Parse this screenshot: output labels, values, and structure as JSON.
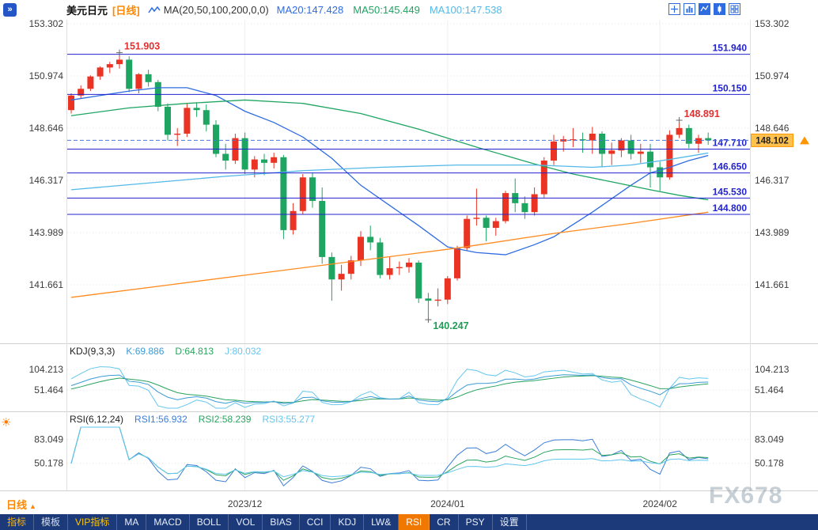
{
  "header": {
    "symbol": "美元日元",
    "timeframe": "[日线]",
    "ma_overlay": "MA(20,50,100,200,0,0)",
    "ma20": "MA20:147.428",
    "ma50": "MA50:145.449",
    "ma100": "MA100:147.538"
  },
  "panels": {
    "kdj": {
      "title": "KDJ(9,3,3)",
      "k": "K:69.886",
      "d": "D:64.813",
      "j": "J:80.032",
      "ticks": [
        {
          "value": 104.213,
          "label": "104.213"
        },
        {
          "value": 51.464,
          "label": "51.464"
        }
      ]
    },
    "rsi": {
      "title": "RSI(6,12,24)",
      "r1": "RSI1:56.932",
      "r2": "RSI2:58.239",
      "r3": "RSI3:55.277",
      "ticks": [
        {
          "value": 83.049,
          "label": "83.049"
        },
        {
          "value": 50.178,
          "label": "50.178"
        }
      ]
    }
  },
  "chart_data": {
    "type": "candlestick",
    "title": "美元日元 日线 (USD/JPY Daily)",
    "y_axis": {
      "ticks": [
        {
          "value": 153.302,
          "label": "153.302"
        },
        {
          "value": 150.974,
          "label": "150.974"
        },
        {
          "value": 148.646,
          "label": "148.646"
        },
        {
          "value": 146.317,
          "label": "146.317"
        },
        {
          "value": 143.989,
          "label": "143.989"
        },
        {
          "value": 141.661,
          "label": "141.661"
        }
      ]
    },
    "x_axis": {
      "ticks": [
        {
          "index": 18,
          "label": "2023/12"
        },
        {
          "index": 39,
          "label": "2024/01"
        },
        {
          "index": 61,
          "label": "2024/02"
        }
      ]
    },
    "candles": [
      [
        149.45,
        150.2,
        149.3,
        150.1
      ],
      [
        150.1,
        150.55,
        149.95,
        150.4
      ],
      [
        150.4,
        151.0,
        150.3,
        150.95
      ],
      [
        150.95,
        151.4,
        150.8,
        151.35
      ],
      [
        151.35,
        151.6,
        151.1,
        151.5
      ],
      [
        151.5,
        151.903,
        151.3,
        151.7
      ],
      [
        151.7,
        151.85,
        150.25,
        150.4
      ],
      [
        150.4,
        151.1,
        150.2,
        151.05
      ],
      [
        151.05,
        151.25,
        150.5,
        150.7
      ],
      [
        150.7,
        150.8,
        149.4,
        149.6
      ],
      [
        149.6,
        149.75,
        148.1,
        148.35
      ],
      [
        148.35,
        148.65,
        147.85,
        148.4
      ],
      [
        148.4,
        149.75,
        148.25,
        149.55
      ],
      [
        149.55,
        149.8,
        149.15,
        149.45
      ],
      [
        149.45,
        149.7,
        148.5,
        148.8
      ],
      [
        148.8,
        149.0,
        147.35,
        147.5
      ],
      [
        147.5,
        147.95,
        146.8,
        147.2
      ],
      [
        147.2,
        148.4,
        147.05,
        148.2
      ],
      [
        148.2,
        148.45,
        146.6,
        146.8
      ],
      [
        146.8,
        147.4,
        146.45,
        147.25
      ],
      [
        147.25,
        147.5,
        146.55,
        147.1
      ],
      [
        147.1,
        147.55,
        146.85,
        147.35
      ],
      [
        147.35,
        147.45,
        143.7,
        144.1
      ],
      [
        144.1,
        145.3,
        143.9,
        144.95
      ],
      [
        144.95,
        146.6,
        144.8,
        146.45
      ],
      [
        146.45,
        146.65,
        145.1,
        145.4
      ],
      [
        145.4,
        146.0,
        142.6,
        142.9
      ],
      [
        142.9,
        143.1,
        140.95,
        141.9
      ],
      [
        141.9,
        142.55,
        141.4,
        142.15
      ],
      [
        142.15,
        142.95,
        141.9,
        142.75
      ],
      [
        142.75,
        144.05,
        142.5,
        143.8
      ],
      [
        143.8,
        144.3,
        143.2,
        143.55
      ],
      [
        143.55,
        143.75,
        141.95,
        142.1
      ],
      [
        142.1,
        142.9,
        141.9,
        142.4
      ],
      [
        142.4,
        142.7,
        142.1,
        142.45
      ],
      [
        142.45,
        142.85,
        142.2,
        142.65
      ],
      [
        142.65,
        142.75,
        140.85,
        141.05
      ],
      [
        141.05,
        141.3,
        140.247,
        140.95
      ],
      [
        140.95,
        141.5,
        140.7,
        141.0
      ],
      [
        141.0,
        142.05,
        140.8,
        141.95
      ],
      [
        141.95,
        143.4,
        141.85,
        143.3
      ],
      [
        143.3,
        144.75,
        143.2,
        144.6
      ],
      [
        144.6,
        145.95,
        144.3,
        144.65
      ],
      [
        144.65,
        144.75,
        143.6,
        144.2
      ],
      [
        144.2,
        144.65,
        143.85,
        144.5
      ],
      [
        144.5,
        145.85,
        144.4,
        145.75
      ],
      [
        145.75,
        146.4,
        144.9,
        145.3
      ],
      [
        145.3,
        145.6,
        144.6,
        144.9
      ],
      [
        144.9,
        146.0,
        144.75,
        145.7
      ],
      [
        145.7,
        147.35,
        145.55,
        147.2
      ],
      [
        147.2,
        148.35,
        147.0,
        148.05
      ],
      [
        148.05,
        148.3,
        147.6,
        148.15
      ],
      [
        148.15,
        148.65,
        147.8,
        148.15
      ],
      [
        148.15,
        148.45,
        147.55,
        148.1
      ],
      [
        148.1,
        148.7,
        147.5,
        148.4
      ],
      [
        148.4,
        148.5,
        146.9,
        147.5
      ],
      [
        147.5,
        148.0,
        147.0,
        147.65
      ],
      [
        147.65,
        148.2,
        147.35,
        148.1
      ],
      [
        148.1,
        148.35,
        147.25,
        147.5
      ],
      [
        147.5,
        147.95,
        147.1,
        147.6
      ],
      [
        147.6,
        147.95,
        146.0,
        146.9
      ],
      [
        146.9,
        147.15,
        145.85,
        146.45
      ],
      [
        146.45,
        148.55,
        146.35,
        148.35
      ],
      [
        148.35,
        148.891,
        148.2,
        148.65
      ],
      [
        148.65,
        148.8,
        147.75,
        147.95
      ],
      [
        147.95,
        148.35,
        147.55,
        148.2
      ],
      [
        148.2,
        148.45,
        147.9,
        148.102
      ]
    ],
    "ma_lines": [
      {
        "name": "MA20",
        "color": "#2e6ce0",
        "points": [
          [
            0,
            149.9
          ],
          [
            3,
            150.1
          ],
          [
            6,
            150.3
          ],
          [
            9,
            150.45
          ],
          [
            12,
            150.45
          ],
          [
            15,
            150.1
          ],
          [
            18,
            149.4
          ],
          [
            21,
            148.9
          ],
          [
            24,
            148.25
          ],
          [
            27,
            147.3
          ],
          [
            30,
            146.1
          ],
          [
            33,
            145.2
          ],
          [
            36,
            144.3
          ],
          [
            39,
            143.35
          ],
          [
            42,
            143.1
          ],
          [
            45,
            143.0
          ],
          [
            48,
            143.45
          ],
          [
            50,
            143.8
          ],
          [
            52,
            144.35
          ],
          [
            54,
            144.9
          ],
          [
            56,
            145.5
          ],
          [
            58,
            146.1
          ],
          [
            60,
            146.65
          ],
          [
            62,
            146.9
          ],
          [
            64,
            147.2
          ],
          [
            66,
            147.428
          ]
        ]
      },
      {
        "name": "MA50",
        "color": "#1fa562",
        "points": [
          [
            0,
            149.2
          ],
          [
            6,
            149.55
          ],
          [
            12,
            149.75
          ],
          [
            18,
            149.9
          ],
          [
            24,
            149.75
          ],
          [
            30,
            149.3
          ],
          [
            36,
            148.6
          ],
          [
            42,
            147.8
          ],
          [
            48,
            147.05
          ],
          [
            52,
            146.6
          ],
          [
            56,
            146.25
          ],
          [
            60,
            145.9
          ],
          [
            63,
            145.65
          ],
          [
            66,
            145.449
          ]
        ]
      },
      {
        "name": "MA100",
        "color": "#54b9e8",
        "points": [
          [
            0,
            145.9
          ],
          [
            8,
            146.2
          ],
          [
            16,
            146.5
          ],
          [
            24,
            146.75
          ],
          [
            32,
            146.9
          ],
          [
            40,
            147.0
          ],
          [
            48,
            147.0
          ],
          [
            54,
            146.9
          ],
          [
            58,
            147.0
          ],
          [
            62,
            147.25
          ],
          [
            66,
            147.538
          ]
        ]
      },
      {
        "name": "MA200",
        "color": "#ff8a1e",
        "points": [
          [
            0,
            141.1
          ],
          [
            10,
            141.65
          ],
          [
            20,
            142.2
          ],
          [
            30,
            142.75
          ],
          [
            40,
            143.3
          ],
          [
            50,
            143.95
          ],
          [
            58,
            144.4
          ],
          [
            66,
            144.9
          ]
        ]
      }
    ],
    "h_lines": {
      "color": "#2323cf",
      "items": [
        {
          "value": 151.94,
          "label": "151.940"
        },
        {
          "value": 150.15,
          "label": "150.150"
        },
        {
          "value": 147.71,
          "label": "147.710"
        },
        {
          "value": 146.65,
          "label": "146.650"
        },
        {
          "value": 145.53,
          "label": "145.530"
        },
        {
          "value": 144.8,
          "label": "144.800"
        }
      ]
    },
    "current_price": {
      "value": 148.102,
      "label": "148.102",
      "box_color": "#ffc14d",
      "border_color": "#ff9500"
    },
    "annotations": [
      {
        "index": 5,
        "price": 151.903,
        "label": "151.903",
        "color": "#e03030",
        "side": "above"
      },
      {
        "index": 37,
        "price": 140.247,
        "label": "140.247",
        "color": "#1f9d55",
        "side": "below"
      },
      {
        "index": 63,
        "price": 148.891,
        "label": "148.891",
        "color": "#e03030",
        "side": "above"
      }
    ],
    "colors": {
      "up": "#ea3323",
      "down": "#1fa562",
      "k": "#3b9bd5",
      "d": "#2aa35f",
      "j": "#66c6ef",
      "rsi1": "#3b7dd8",
      "rsi2": "#2aa35f",
      "rsi3": "#62c6ef"
    },
    "kdj_params": [
      9,
      3,
      3
    ],
    "rsi_params": [
      6,
      12,
      24
    ]
  },
  "period": {
    "label": "日线",
    "arrow": "▲"
  },
  "icons": {
    "collapse_glyph": "»",
    "sun_glyph": "☀"
  },
  "toolbar": {
    "items": [
      {
        "id": "indicators",
        "label": "指标",
        "style": "accent"
      },
      {
        "id": "templates",
        "label": "模板",
        "style": "muted"
      },
      {
        "id": "vip-indicators",
        "label": "VIP指标",
        "style": "vip"
      },
      {
        "id": "ma",
        "label": "MA"
      },
      {
        "id": "macd",
        "label": "MACD"
      },
      {
        "id": "boll",
        "label": "BOLL"
      },
      {
        "id": "vol",
        "label": "VOL"
      },
      {
        "id": "bias",
        "label": "BIAS"
      },
      {
        "id": "cci",
        "label": "CCI"
      },
      {
        "id": "kdj",
        "label": "KDJ"
      },
      {
        "id": "lwr",
        "label": "LW&"
      },
      {
        "id": "rsi",
        "label": "RSI",
        "style": "active"
      },
      {
        "id": "cr",
        "label": "CR"
      },
      {
        "id": "psy",
        "label": "PSY"
      },
      {
        "id": "settings",
        "label": "设置"
      }
    ]
  },
  "watermark": "FX678"
}
